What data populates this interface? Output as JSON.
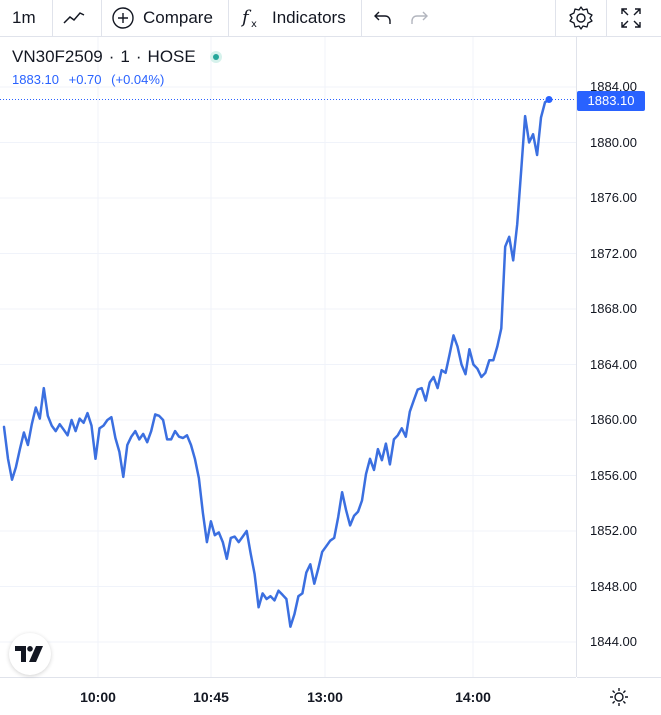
{
  "toolbar": {
    "interval": "1m",
    "compare_label": "Compare",
    "indicators_label": "Indicators",
    "icons": [
      "chart-type-icon",
      "plus-circle-icon",
      "fx-icon",
      "undo-icon",
      "redo-icon",
      "settings-icon",
      "fullscreen-icon"
    ]
  },
  "legend": {
    "symbol": "VN30F2509",
    "interval": "1",
    "exchange": "HOSE",
    "separator": "·",
    "price": "1883.10",
    "change": "+0.70",
    "change_pct": "(+0.04%)",
    "status_color": "#26a69a"
  },
  "price_label": "1883.10",
  "colors": {
    "line": "#3b6fe0",
    "accent": "#2962ff",
    "grid": "#f0f3fa"
  },
  "chart_data": {
    "type": "line",
    "symbol": "VN30F2509",
    "y_ticks": [
      "1884.00",
      "1880.00",
      "1876.00",
      "1872.00",
      "1868.00",
      "1864.00",
      "1860.00",
      "1856.00",
      "1852.00",
      "1848.00",
      "1844.00"
    ],
    "x_ticks": [
      "10:00",
      "10:45",
      "13:00",
      "14:00"
    ],
    "ylim": [
      1842,
      1885
    ],
    "last_value": 1883.1,
    "x": [
      0,
      1,
      2,
      3,
      4,
      5,
      6,
      7,
      8,
      9,
      10,
      11,
      12,
      13,
      14,
      15,
      16,
      17,
      18,
      19,
      20,
      21,
      22,
      23,
      24,
      25,
      26,
      27,
      28,
      29,
      30,
      31,
      32,
      33,
      34,
      35,
      36,
      37,
      38,
      39,
      40,
      41,
      42,
      43,
      44,
      45,
      46,
      47,
      48,
      49,
      50,
      51,
      52,
      53,
      54,
      55,
      56,
      57,
      58,
      59,
      60,
      61,
      62,
      63,
      64,
      65,
      66,
      67,
      68,
      69,
      70,
      71,
      72,
      73,
      74,
      75,
      76,
      77,
      78,
      79,
      80,
      81,
      82,
      83,
      84,
      85,
      86,
      87,
      88,
      89,
      90,
      91,
      92,
      93,
      94,
      95,
      96,
      97,
      98,
      99,
      100,
      101,
      102,
      103,
      104,
      105,
      106,
      107,
      108,
      109,
      110,
      111,
      112,
      113,
      114,
      115,
      116,
      117,
      118,
      119,
      120,
      121,
      122,
      123,
      124,
      125,
      126,
      127,
      128,
      129,
      130,
      131,
      132,
      133,
      134,
      135,
      136,
      137
    ],
    "values": [
      1859.5,
      1857.2,
      1855.7,
      1856.6,
      1857.9,
      1859.1,
      1858.2,
      1859.7,
      1860.9,
      1860.1,
      1862.3,
      1860.3,
      1859.6,
      1859.2,
      1859.7,
      1859.3,
      1858.9,
      1860.0,
      1859.2,
      1860.1,
      1859.8,
      1860.5,
      1859.6,
      1857.2,
      1859.4,
      1859.6,
      1860.0,
      1860.2,
      1858.7,
      1857.7,
      1855.9,
      1858.2,
      1858.8,
      1859.2,
      1858.6,
      1859.0,
      1858.4,
      1859.2,
      1860.4,
      1860.3,
      1860.0,
      1858.6,
      1858.6,
      1859.2,
      1858.8,
      1858.7,
      1858.9,
      1858.2,
      1857.2,
      1855.8,
      1853.3,
      1851.2,
      1852.7,
      1851.7,
      1851.9,
      1851.2,
      1850.0,
      1851.5,
      1851.6,
      1851.2,
      1851.6,
      1852.0,
      1850.4,
      1848.9,
      1846.5,
      1847.5,
      1847.1,
      1847.3,
      1847.0,
      1847.7,
      1847.4,
      1847.1,
      1845.1,
      1846.0,
      1847.3,
      1847.5,
      1849.0,
      1849.6,
      1848.2,
      1849.3,
      1850.5,
      1850.9,
      1851.3,
      1851.5,
      1853.0,
      1854.8,
      1853.5,
      1852.4,
      1853.1,
      1853.4,
      1854.2,
      1856.1,
      1857.2,
      1856.4,
      1857.9,
      1857.1,
      1858.3,
      1856.8,
      1858.6,
      1858.9,
      1859.4,
      1858.8,
      1860.6,
      1861.4,
      1862.2,
      1862.3,
      1861.4,
      1862.7,
      1863.1,
      1862.3,
      1863.6,
      1863.4,
      1864.7,
      1866.1,
      1865.3,
      1864.0,
      1863.3,
      1865.1,
      1864.0,
      1863.7,
      1863.1,
      1863.4,
      1864.3,
      1864.3,
      1865.3,
      1866.6,
      1872.5,
      1873.2,
      1871.5,
      1874.1,
      1878.0,
      1881.9,
      1880.0,
      1880.6,
      1879.1,
      1881.8,
      1882.9,
      1883.1
    ]
  }
}
